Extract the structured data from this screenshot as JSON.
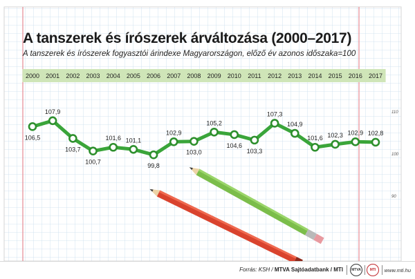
{
  "title": "A tanszerek és írószerek árváltozása (2000–2017)",
  "subtitle": "A tanszerek és írószerek fogyasztói árindexe Magyarországon, előző év azonos időszaka=100",
  "chart_data": {
    "type": "line",
    "categories": [
      "2000",
      "2001",
      "2002",
      "2003",
      "2004",
      "2005",
      "2006",
      "2007",
      "2008",
      "2009",
      "2010",
      "2011",
      "2012",
      "2013",
      "2014",
      "2015",
      "2016",
      "2017"
    ],
    "values": [
      106.5,
      107.9,
      103.7,
      100.7,
      101.6,
      101.1,
      99.8,
      102.9,
      103.0,
      105.2,
      104.6,
      103.3,
      107.3,
      104.9,
      101.6,
      102.3,
      102.9,
      102.8
    ],
    "value_labels": [
      "106,5",
      "107,9",
      "103,7",
      "100,7",
      "101,6",
      "101,1",
      "99,8",
      "102,9",
      "103,0",
      "105,2",
      "104,6",
      "103,3",
      "107,3",
      "104,9",
      "101,6",
      "102,3",
      "102,9",
      "102,8"
    ],
    "label_positions": [
      "below",
      "above",
      "below",
      "below",
      "above",
      "above",
      "below",
      "above",
      "below",
      "above",
      "below",
      "below",
      "above",
      "above",
      "above",
      "above",
      "above",
      "above"
    ],
    "y_ticks": [
      "110",
      "100",
      "90"
    ],
    "ylim": [
      88,
      112
    ],
    "line_color": "#3aa53a",
    "marker_color": "#2d8f2d",
    "band_color": "#cfe5b8",
    "legend": "none"
  },
  "footer": {
    "source_label": "Forrás:",
    "source_text": "KSH /",
    "source_org": "MTVA Sajtóadatbank / MTI",
    "logo_mtva": "MTVA",
    "logo_mti": "MTI",
    "website": "www.mti.hu"
  }
}
